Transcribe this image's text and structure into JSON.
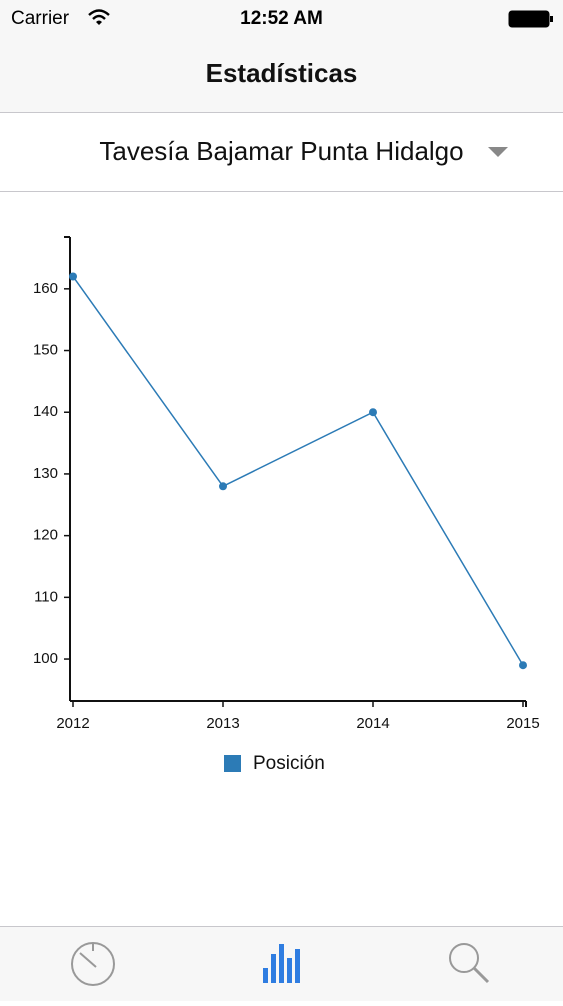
{
  "status_bar": {
    "carrier": "Carrier",
    "time": "12:52 AM"
  },
  "nav": {
    "title": "Estadísticas"
  },
  "selector": {
    "label": "Tavesía Bajamar Punta Hidalgo"
  },
  "chart_data": {
    "type": "line",
    "x": [
      2012,
      2013,
      2014,
      2015
    ],
    "series": [
      {
        "name": "Posición",
        "color": "#2c7bb6",
        "values": [
          162,
          128,
          140,
          99
        ]
      }
    ],
    "xlim": [
      2012,
      2015
    ],
    "xticks": [
      2012,
      2013,
      2014,
      2015
    ],
    "ylim": [
      93.2,
      168.4
    ],
    "yticks": [
      100,
      110,
      120,
      130,
      140,
      150,
      160
    ],
    "grid": false
  }
}
